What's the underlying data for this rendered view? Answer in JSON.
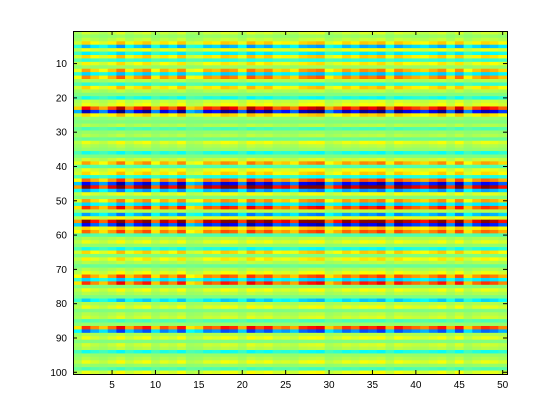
{
  "chart_data": {
    "type": "heatmap",
    "title": "",
    "xlabel": "",
    "ylabel": "",
    "n_rows": 100,
    "n_cols": 50,
    "xlim": [
      0.5,
      50.5
    ],
    "ylim": [
      0.5,
      100.5
    ],
    "y_reversed": true,
    "x_ticks": [
      5,
      10,
      15,
      20,
      25,
      30,
      35,
      40,
      45,
      50
    ],
    "y_ticks": [
      10,
      20,
      30,
      40,
      50,
      60,
      70,
      80,
      90,
      100
    ],
    "x_tick_labels": [
      "5",
      "10",
      "15",
      "20",
      "25",
      "30",
      "35",
      "40",
      "45",
      "50"
    ],
    "y_tick_labels": [
      "10",
      "20",
      "30",
      "40",
      "50",
      "60",
      "70",
      "80",
      "90",
      "100"
    ],
    "colormap": "jet",
    "clim": [
      -1,
      1
    ],
    "row_values": [
      0.15,
      0.05,
      0.12,
      0.3,
      -0.35,
      0.2,
      -0.25,
      0.3,
      -0.15,
      0.25,
      0.05,
      0.4,
      -0.3,
      0.45,
      0.1,
      -0.15,
      0.3,
      0.1,
      0.0,
      -0.2,
      0.15,
      0.2,
      0.7,
      -0.8,
      0.3,
      0.05,
      0.0,
      0.1,
      -0.1,
      0.05,
      0.1,
      -0.05,
      0.2,
      0.1,
      0.05,
      -0.2,
      0.0,
      0.15,
      0.4,
      -0.1,
      0.2,
      0.3,
      -0.2,
      0.5,
      -0.7,
      0.9,
      -0.4,
      0.2,
      0.0,
      0.4,
      -0.3,
      0.6,
      0.1,
      -0.4,
      0.2,
      0.9,
      -0.7,
      0.3,
      0.5,
      -0.1,
      0.1,
      0.2,
      0.05,
      -0.2,
      0.3,
      0.0,
      0.25,
      0.1,
      -0.05,
      0.1,
      0.2,
      0.5,
      -0.3,
      0.6,
      0.0,
      0.2,
      0.1,
      0.0,
      -0.3,
      0.1,
      0.2,
      0.0,
      0.1,
      0.15,
      -0.1,
      0.05,
      0.6,
      -0.5,
      0.1,
      0.2,
      0.0,
      0.15,
      0.1,
      -0.2,
      0.05,
      0.1,
      0.2,
      0.05,
      -0.1,
      0.2
    ],
    "column_gains": [
      0.5,
      1.1,
      0.8,
      0.6,
      0.9,
      1.3,
      0.7,
      1.0,
      1.2,
      0.6,
      1.0,
      0.8,
      1.2,
      0.5,
      0.6,
      1.0,
      0.9,
      1.2,
      1.1,
      0.7,
      1.3,
      1.0,
      1.2,
      0.8,
      0.9,
      0.7,
      1.1,
      1.2,
      1.3,
      0.6,
      0.8,
      1.1,
      0.9,
      1.2,
      1.1,
      1.3,
      0.7,
      1.2,
      1.0,
      0.9,
      0.8,
      1.0,
      1.2,
      0.7,
      1.2,
      0.6,
      0.9,
      1.1,
      1.0,
      0.8
    ]
  }
}
